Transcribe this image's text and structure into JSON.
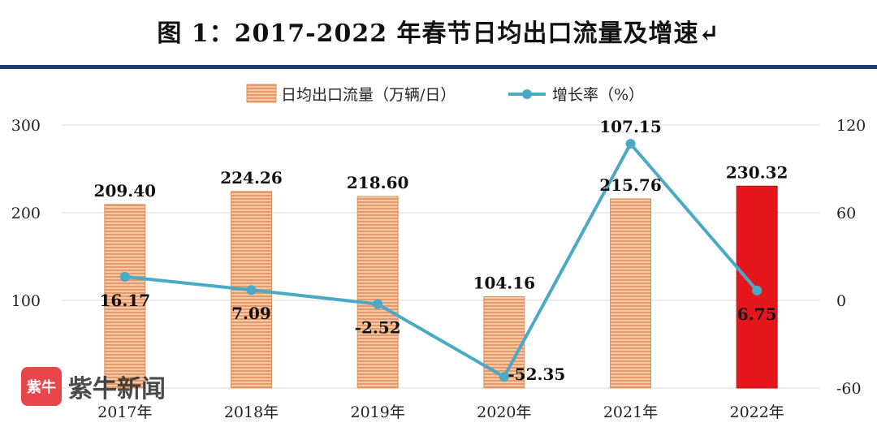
{
  "title": "图 1：2017-2022 年春节日均出口流量及增速↵",
  "watermark": {
    "logo_text": "紫牛",
    "text": "紫牛新闻"
  },
  "colors": {
    "bar": "#e8a37a",
    "bar_highlight": "#e5161c",
    "line": "#4aaac5",
    "rule": "#1f3b6b"
  },
  "chart_data": {
    "type": "bar",
    "categories": [
      "2017年",
      "2018年",
      "2019年",
      "2020年",
      "2021年",
      "2022年"
    ],
    "series": [
      {
        "name": "日均出口流量（万辆/日）",
        "type": "bar",
        "axis": "left",
        "values": [
          209.4,
          224.26,
          218.6,
          104.16,
          215.76,
          230.32
        ],
        "labels": [
          "209.40",
          "224.26",
          "218.60",
          "104.16",
          "215.76",
          "230.32"
        ]
      },
      {
        "name": "增长率（%）",
        "type": "line",
        "axis": "right",
        "values": [
          16.17,
          7.09,
          -2.52,
          -52.35,
          107.15,
          6.75
        ],
        "labels": [
          "16.17",
          "7.09",
          "-2.52",
          "-52.35",
          "107.15",
          "6.75"
        ]
      }
    ],
    "y_left": {
      "ticks": [
        "300",
        "200",
        "100"
      ],
      "lim": [
        0,
        300
      ]
    },
    "y_right": {
      "ticks": [
        "120",
        "60",
        "0",
        "-60"
      ],
      "lim": [
        -60,
        120
      ]
    },
    "legend_position": "top-center",
    "grid": true,
    "highlight_category": "2022年"
  }
}
